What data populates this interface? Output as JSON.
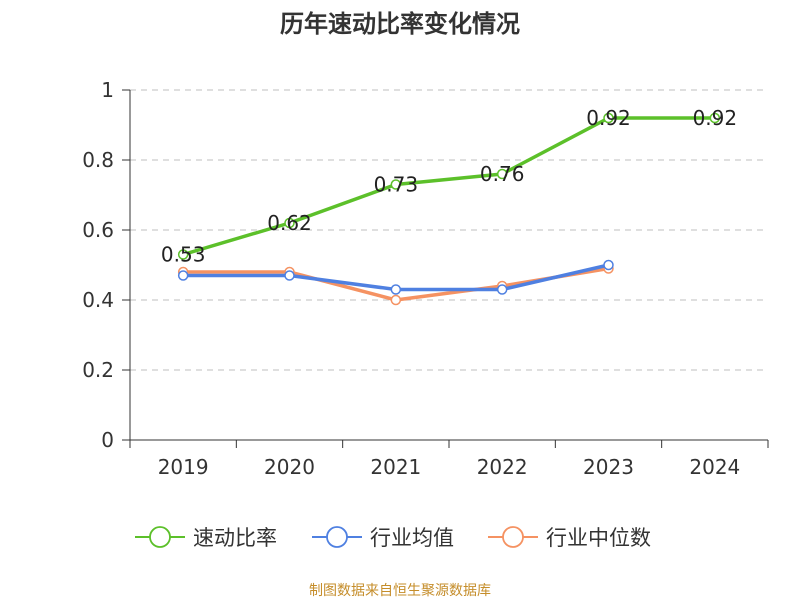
{
  "chart_data": {
    "type": "line",
    "title": "历年速动比率变化情况",
    "categories": [
      "2019",
      "2020",
      "2021",
      "2022",
      "2023",
      "2024"
    ],
    "ylim": [
      0,
      1
    ],
    "yticks": [
      0,
      0.2,
      0.4,
      0.6,
      0.8,
      1
    ],
    "ytick_labels": [
      "0",
      "0.2",
      "0.4",
      "0.6",
      "0.8",
      "1"
    ],
    "grid": "horizontal-dashed",
    "legend_position": "bottom",
    "series": [
      {
        "name": "速动比率",
        "color": "#5cc02a",
        "values": [
          0.53,
          0.62,
          0.73,
          0.76,
          0.92,
          0.92
        ],
        "labels": [
          "0.53",
          "0.62",
          "0.73",
          "0.76",
          "0.92",
          "0.92"
        ],
        "show_labels": true
      },
      {
        "name": "行业均值",
        "color": "#4f80e1",
        "values": [
          0.47,
          0.47,
          0.43,
          0.43,
          0.5,
          null
        ],
        "show_labels": false
      },
      {
        "name": "行业中位数",
        "color": "#f59262",
        "values": [
          0.48,
          0.48,
          0.4,
          0.44,
          0.49,
          null
        ],
        "show_labels": false
      }
    ],
    "source": "制图数据来自恒生聚源数据库"
  }
}
